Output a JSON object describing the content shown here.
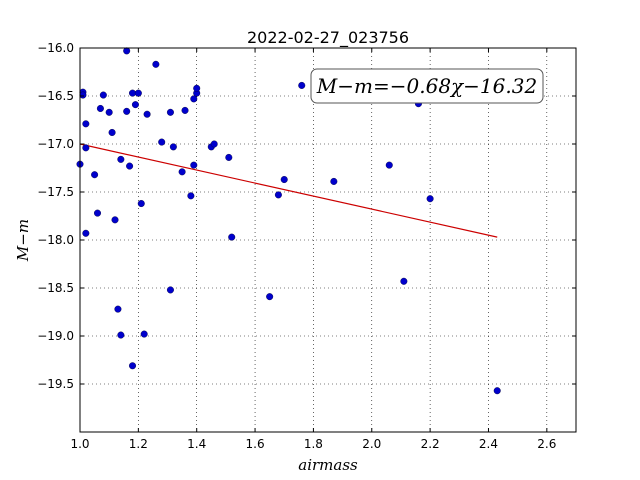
{
  "chart_data": {
    "type": "scatter",
    "title": "2022-02-27_023756",
    "xlabel": "airmass",
    "ylabel": "M−m",
    "xlim": [
      1.0,
      2.7
    ],
    "ylim": [
      -16.0,
      -20.0
    ],
    "y_inverted": true,
    "grid": true,
    "x_ticks": [
      1.0,
      1.2,
      1.4,
      1.6,
      1.8,
      2.0,
      2.2,
      2.4,
      2.6
    ],
    "x_tick_labels": [
      "1.0",
      "1.2",
      "1.4",
      "1.6",
      "1.8",
      "2.0",
      "2.2",
      "2.4",
      "2.6"
    ],
    "y_ticks": [
      -16.0,
      -16.5,
      -17.0,
      -17.5,
      -18.0,
      -18.5,
      -19.0,
      -19.5
    ],
    "y_tick_labels": [
      "−16.0",
      "−16.5",
      "−17.0",
      "−17.5",
      "−18.0",
      "−18.5",
      "−19.0",
      "−19.5"
    ],
    "annotation": "M−m=−0.68χ−16.32",
    "marker_color": "#0000cc",
    "fit_color": "#cc0000",
    "points": [
      [
        1.0,
        -17.21
      ],
      [
        1.01,
        -16.46
      ],
      [
        1.01,
        -16.49
      ],
      [
        1.02,
        -16.79
      ],
      [
        1.02,
        -17.04
      ],
      [
        1.02,
        -17.93
      ],
      [
        1.05,
        -17.32
      ],
      [
        1.06,
        -17.72
      ],
      [
        1.07,
        -16.63
      ],
      [
        1.08,
        -16.49
      ],
      [
        1.1,
        -16.67
      ],
      [
        1.11,
        -16.88
      ],
      [
        1.12,
        -17.79
      ],
      [
        1.13,
        -18.72
      ],
      [
        1.14,
        -17.16
      ],
      [
        1.14,
        -18.99
      ],
      [
        1.16,
        -16.03
      ],
      [
        1.16,
        -16.66
      ],
      [
        1.17,
        -17.23
      ],
      [
        1.18,
        -19.31
      ],
      [
        1.18,
        -16.47
      ],
      [
        1.19,
        -16.59
      ],
      [
        1.2,
        -16.47
      ],
      [
        1.21,
        -17.62
      ],
      [
        1.22,
        -18.98
      ],
      [
        1.23,
        -16.69
      ],
      [
        1.26,
        -16.17
      ],
      [
        1.28,
        -16.98
      ],
      [
        1.31,
        -16.67
      ],
      [
        1.31,
        -18.52
      ],
      [
        1.32,
        -17.03
      ],
      [
        1.35,
        -17.29
      ],
      [
        1.36,
        -16.65
      ],
      [
        1.38,
        -17.54
      ],
      [
        1.39,
        -16.53
      ],
      [
        1.39,
        -17.22
      ],
      [
        1.4,
        -16.47
      ],
      [
        1.4,
        -16.42
      ],
      [
        1.45,
        -17.03
      ],
      [
        1.46,
        -17.0
      ],
      [
        1.51,
        -17.14
      ],
      [
        1.52,
        -17.97
      ],
      [
        1.65,
        -18.59
      ],
      [
        1.68,
        -17.53
      ],
      [
        1.7,
        -17.37
      ],
      [
        1.76,
        -16.39
      ],
      [
        1.87,
        -17.39
      ],
      [
        2.06,
        -17.22
      ],
      [
        2.11,
        -18.43
      ],
      [
        2.16,
        -16.58
      ],
      [
        2.2,
        -17.57
      ],
      [
        2.43,
        -19.57
      ]
    ],
    "fit_line": {
      "x": [
        1.0,
        2.43
      ],
      "y": [
        -17.0,
        -17.97
      ]
    }
  }
}
